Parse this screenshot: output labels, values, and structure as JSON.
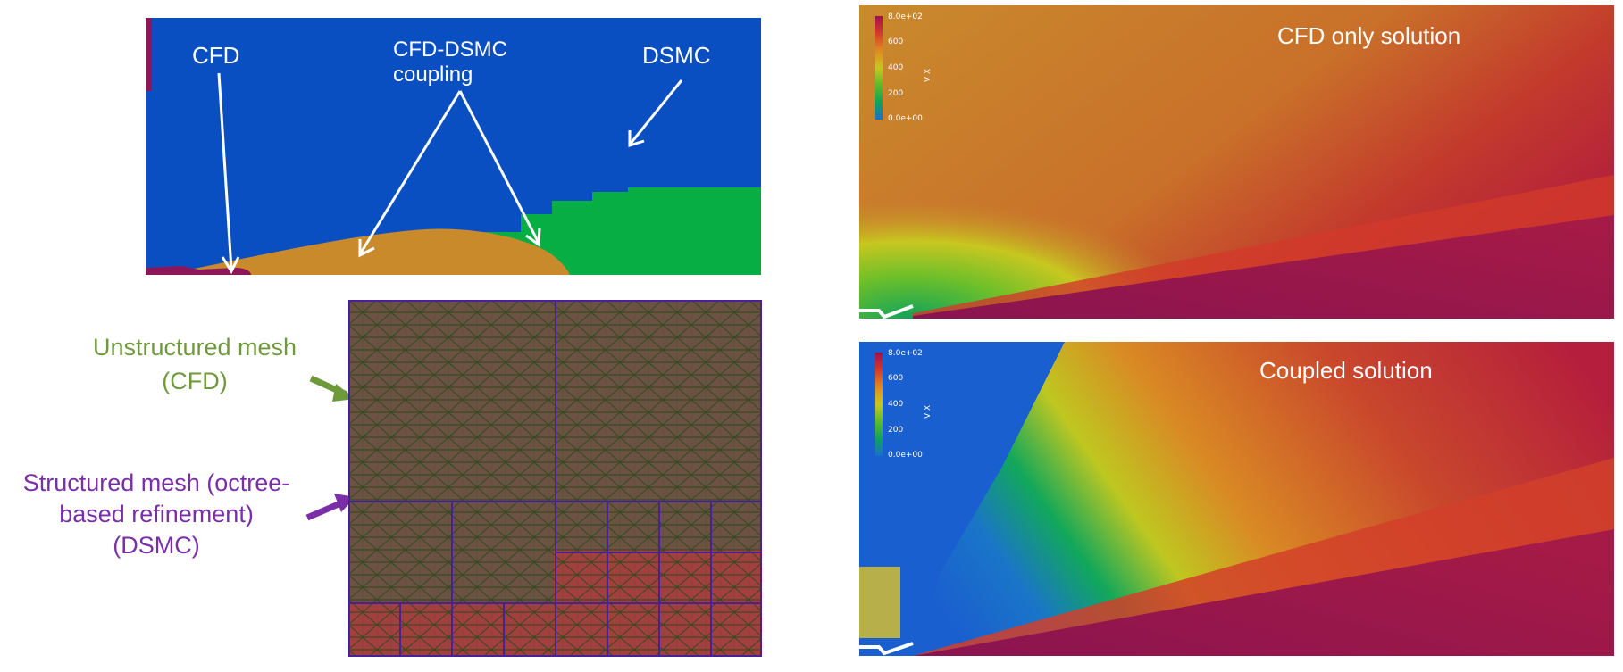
{
  "top_panel": {
    "cfd_label": "CFD",
    "coupling_label_line1": "CFD-DSMC",
    "coupling_label_line2": "coupling",
    "dsmc_label": "DSMC",
    "colors": {
      "dsmc": "#0a4fc2",
      "cfd": "#c98a2c",
      "coupling": "#06ae43",
      "body": "#8d1659"
    }
  },
  "mesh_panel": {
    "unstructured_line1": "Unstructured mesh",
    "unstructured_line2": "(CFD)",
    "structured_line1": "Structured mesh (octree-",
    "structured_line2": "based refinement)",
    "structured_line3": "(DSMC)",
    "colors": {
      "unstructured": "#6f9a3c",
      "structured": "#7a2fa8"
    }
  },
  "solution_top": {
    "title": "CFD only solution",
    "legend": {
      "max": "8.0e+02",
      "t600": "600",
      "t400": "400",
      "t200": "200",
      "min": "0.0e+00",
      "var": "V X"
    }
  },
  "solution_bottom": {
    "title": "Coupled solution",
    "legend": {
      "max": "8.0e+02",
      "t600": "600",
      "t400": "400",
      "t200": "200",
      "min": "0.0e+00",
      "var": "V X"
    }
  }
}
